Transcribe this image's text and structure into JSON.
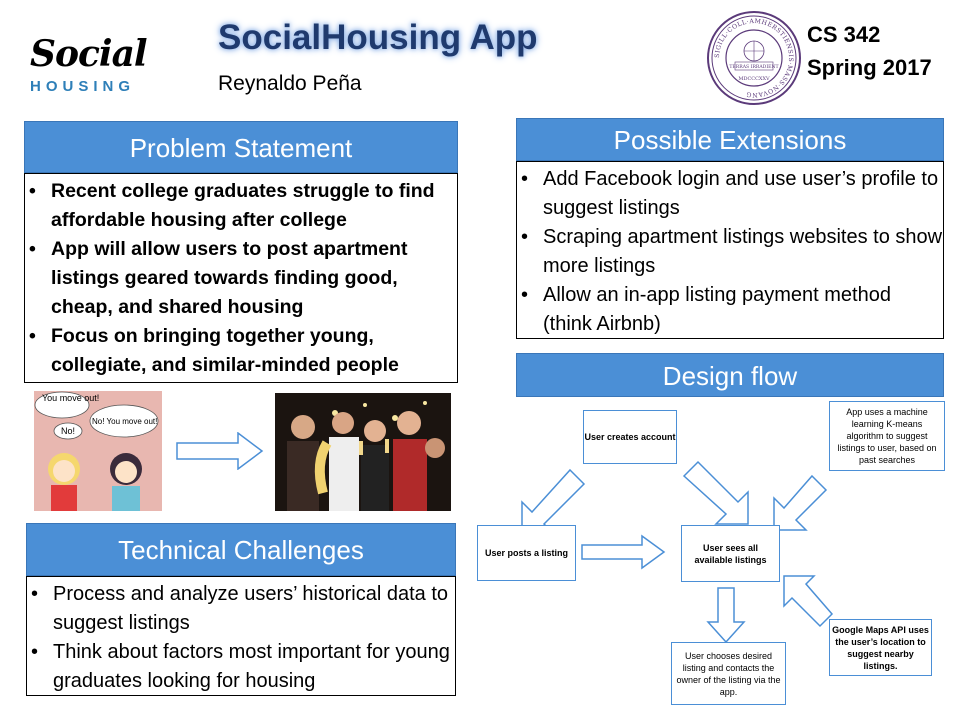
{
  "header": {
    "logo_line1": "Social",
    "logo_line2": "HOUSING",
    "title": "SocialHousing App",
    "author": "Reynaldo Peña",
    "course": "CS 342",
    "term": "Spring 2017",
    "seal_text": "SIGILL·COLL·AMHERSTIENSIS·MASS·NOVANG",
    "seal_motto": "TERRAS IRRADIENT",
    "seal_year": "MDCCCXXV"
  },
  "problem": {
    "title": "Problem Statement",
    "bullets": [
      "Recent college graduates struggle to find affordable housing after college",
      "App will allow users to post apartment listings geared towards finding good, cheap, and shared housing",
      "Focus on bringing together young, collegiate, and similar-minded people"
    ]
  },
  "cartoon": {
    "bubble1": "You move out!",
    "bubble2": "No!",
    "bubble3": "No! You move out!"
  },
  "technical": {
    "title": "Technical Challenges",
    "bullets": [
      "Process and analyze users’ historical data to suggest listings",
      "Think about factors most important for young graduates looking for housing"
    ]
  },
  "extensions": {
    "title": "Possible Extensions",
    "bullets": [
      "Add Facebook login and use user’s profile to suggest listings",
      "Scraping apartment listings websites to show more listings",
      "Allow an in-app listing payment method (think Airbnb)"
    ]
  },
  "design": {
    "title": "Design flow",
    "create_account": "User creates account",
    "post_listing": "User posts a listing",
    "see_listings": "User sees all available listings",
    "kmeans": "App uses a machine learning K-means algorithm to suggest listings to user, based on past searches",
    "maps": "Google Maps API uses the user’s location to suggest nearby listings.",
    "contact": "User chooses desired listing and contacts the owner of the listing via the app."
  },
  "colors": {
    "accent": "#4b8fd6",
    "title": "#1f3a6e",
    "seal": "#5b3a7a"
  }
}
